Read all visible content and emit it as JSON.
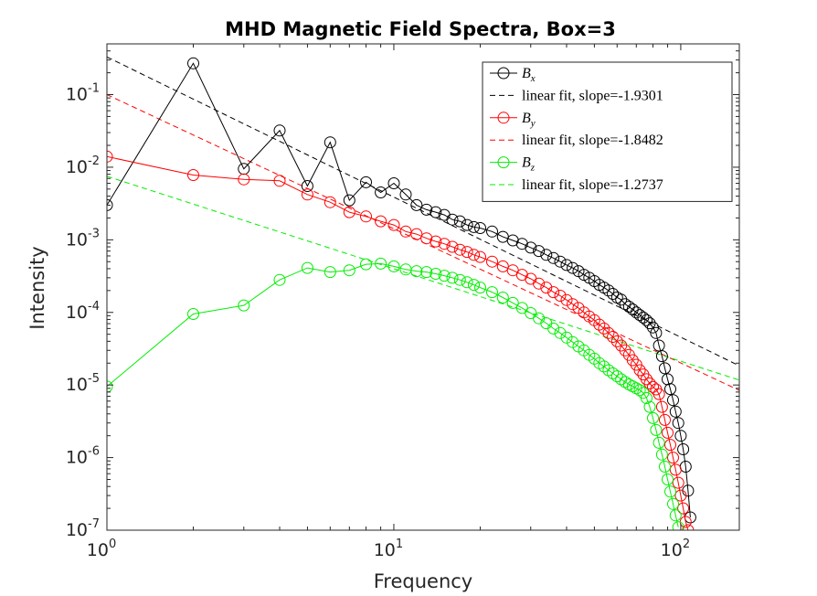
{
  "chart_data": {
    "type": "scatter",
    "title": "MHD Magnetic Field Spectra, Box=3",
    "xlabel": "Frequency",
    "ylabel": "Intensity",
    "xscale": "log",
    "yscale": "log",
    "xlim": [
      1,
      160
    ],
    "ylim": [
      1e-07,
      0.5
    ],
    "xticks": [
      {
        "base": "10",
        "exp": "0",
        "value": 1
      },
      {
        "base": "10",
        "exp": "1",
        "value": 10
      },
      {
        "base": "10",
        "exp": "2",
        "value": 100
      }
    ],
    "yticks": [
      {
        "base": "10",
        "exp": "-1",
        "value": 0.1
      },
      {
        "base": "10",
        "exp": "-2",
        "value": 0.01
      },
      {
        "base": "10",
        "exp": "-3",
        "value": 0.001
      },
      {
        "base": "10",
        "exp": "-4",
        "value": 0.0001
      },
      {
        "base": "10",
        "exp": "-5",
        "value": 1e-05
      },
      {
        "base": "10",
        "exp": "-6",
        "value": 1e-06
      },
      {
        "base": "10",
        "exp": "-7",
        "value": 1e-07
      }
    ],
    "grid": false,
    "legend_position": "top-right",
    "series": [
      {
        "sym": "B",
        "sub": "x",
        "color": "#000000",
        "points": [
          [
            1,
            0.003
          ],
          [
            2,
            0.27
          ],
          [
            3,
            0.0095
          ],
          [
            4,
            0.032
          ],
          [
            5,
            0.0055
          ],
          [
            6,
            0.022
          ],
          [
            7,
            0.0035
          ],
          [
            8,
            0.0062
          ],
          [
            9,
            0.0045
          ],
          [
            10,
            0.006
          ],
          [
            11,
            0.0042
          ],
          [
            12,
            0.003
          ],
          [
            13,
            0.0026
          ],
          [
            14,
            0.0024
          ],
          [
            15,
            0.0022
          ],
          [
            16,
            0.0019
          ],
          [
            17,
            0.0018
          ],
          [
            18,
            0.0016
          ],
          [
            19,
            0.0015
          ],
          [
            20,
            0.00145
          ],
          [
            22,
            0.0013
          ],
          [
            24,
            0.0011
          ],
          [
            26,
            0.00098
          ],
          [
            28,
            0.00088
          ],
          [
            30,
            0.00078
          ],
          [
            32,
            0.0007
          ],
          [
            34,
            0.00062
          ],
          [
            36,
            0.00056
          ],
          [
            38,
            0.0005
          ],
          [
            40,
            0.00045
          ],
          [
            42,
            0.00041
          ],
          [
            44,
            0.00037
          ],
          [
            46,
            0.00033
          ],
          [
            48,
            0.0003
          ],
          [
            50,
            0.00027
          ],
          [
            52,
            0.00024
          ],
          [
            54,
            0.00022
          ],
          [
            56,
            0.0002
          ],
          [
            58,
            0.00018
          ],
          [
            60,
            0.00016
          ],
          [
            62,
            0.00015
          ],
          [
            64,
            0.00013
          ],
          [
            66,
            0.00012
          ],
          [
            68,
            0.00011
          ],
          [
            70,
            0.0001
          ],
          [
            72,
            9.2e-05
          ],
          [
            74,
            8.5e-05
          ],
          [
            76,
            7.8e-05
          ],
          [
            78,
            7.1e-05
          ],
          [
            80,
            6.2e-05
          ],
          [
            82,
            5.2e-05
          ],
          [
            84,
            3.5e-05
          ],
          [
            86,
            2.5e-05
          ],
          [
            88,
            1.7e-05
          ],
          [
            90,
            1.2e-05
          ],
          [
            92,
            8.8e-06
          ],
          [
            94,
            6.2e-06
          ],
          [
            96,
            4.3e-06
          ],
          [
            98,
            3e-06
          ],
          [
            100,
            2e-06
          ],
          [
            102,
            1.3e-06
          ],
          [
            104,
            7.5e-07
          ],
          [
            106,
            3.5e-07
          ],
          [
            108,
            1.5e-07
          ]
        ]
      },
      {
        "sym": "B",
        "sub": "y",
        "color": "#ff0000",
        "points": [
          [
            1,
            0.014
          ],
          [
            2,
            0.0078
          ],
          [
            3,
            0.0068
          ],
          [
            4,
            0.0065
          ],
          [
            5,
            0.0042
          ],
          [
            6,
            0.0033
          ],
          [
            7,
            0.0024
          ],
          [
            8,
            0.0021
          ],
          [
            9,
            0.0018
          ],
          [
            10,
            0.0016
          ],
          [
            11,
            0.0013
          ],
          [
            12,
            0.0012
          ],
          [
            13,
            0.00105
          ],
          [
            14,
            0.00095
          ],
          [
            15,
            0.00088
          ],
          [
            16,
            0.0008
          ],
          [
            17,
            0.00073
          ],
          [
            18,
            0.00068
          ],
          [
            19,
            0.00062
          ],
          [
            20,
            0.00058
          ],
          [
            22,
            0.0005
          ],
          [
            24,
            0.00043
          ],
          [
            26,
            0.00038
          ],
          [
            28,
            0.00033
          ],
          [
            30,
            0.00029
          ],
          [
            32,
            0.00025
          ],
          [
            34,
            0.00022
          ],
          [
            36,
            0.00019
          ],
          [
            38,
            0.00017
          ],
          [
            40,
            0.000148
          ],
          [
            42,
            0.00013
          ],
          [
            44,
            0.000115
          ],
          [
            46,
            0.0001
          ],
          [
            48,
            8.8e-05
          ],
          [
            50,
            7.8e-05
          ],
          [
            52,
            6.8e-05
          ],
          [
            54,
            6e-05
          ],
          [
            56,
            5.2e-05
          ],
          [
            58,
            4.6e-05
          ],
          [
            60,
            4e-05
          ],
          [
            62,
            3.5e-05
          ],
          [
            64,
            3e-05
          ],
          [
            66,
            2.6e-05
          ],
          [
            68,
            2.2e-05
          ],
          [
            70,
            1.9e-05
          ],
          [
            72,
            1.6e-05
          ],
          [
            74,
            1.4e-05
          ],
          [
            76,
            1.2e-05
          ],
          [
            78,
            1.05e-05
          ],
          [
            80,
            9.4e-06
          ],
          [
            82,
            8.7e-06
          ],
          [
            84,
            7.5e-06
          ],
          [
            86,
            5e-06
          ],
          [
            88,
            3.3e-06
          ],
          [
            90,
            2.2e-06
          ],
          [
            92,
            1.5e-06
          ],
          [
            94,
            1e-06
          ],
          [
            96,
            6.8e-07
          ],
          [
            98,
            4.5e-07
          ],
          [
            100,
            3e-07
          ],
          [
            102,
            2e-07
          ],
          [
            104,
            1.3e-07
          ],
          [
            106,
            1e-07
          ]
        ]
      },
      {
        "sym": "B",
        "sub": "z",
        "color": "#00ee00",
        "points": [
          [
            1,
            9.5e-06
          ],
          [
            2,
            9.5e-05
          ],
          [
            3,
            0.000125
          ],
          [
            4,
            0.00028
          ],
          [
            5,
            0.00041
          ],
          [
            6,
            0.00036
          ],
          [
            7,
            0.00038
          ],
          [
            8,
            0.00046
          ],
          [
            9,
            0.00047
          ],
          [
            10,
            0.00043
          ],
          [
            11,
            0.00039
          ],
          [
            12,
            0.00037
          ],
          [
            13,
            0.00036
          ],
          [
            14,
            0.00034
          ],
          [
            15,
            0.00032
          ],
          [
            16,
            0.0003
          ],
          [
            17,
            0.00028
          ],
          [
            18,
            0.00026
          ],
          [
            19,
            0.00024
          ],
          [
            20,
            0.00022
          ],
          [
            22,
            0.00019
          ],
          [
            24,
            0.00016
          ],
          [
            26,
            0.000135
          ],
          [
            28,
            0.000115
          ],
          [
            30,
            9.8e-05
          ],
          [
            32,
            8.3e-05
          ],
          [
            34,
            7.1e-05
          ],
          [
            36,
            6e-05
          ],
          [
            38,
            5.2e-05
          ],
          [
            40,
            4.5e-05
          ],
          [
            42,
            3.9e-05
          ],
          [
            44,
            3.4e-05
          ],
          [
            46,
            3e-05
          ],
          [
            48,
            2.6e-05
          ],
          [
            50,
            2.3e-05
          ],
          [
            52,
            2e-05
          ],
          [
            54,
            1.8e-05
          ],
          [
            56,
            1.6e-05
          ],
          [
            58,
            1.45e-05
          ],
          [
            60,
            1.32e-05
          ],
          [
            62,
            1.2e-05
          ],
          [
            64,
            1.1e-05
          ],
          [
            66,
            1.02e-05
          ],
          [
            68,
            9.6e-06
          ],
          [
            70,
            9e-06
          ],
          [
            72,
            8.5e-06
          ],
          [
            74,
            7.8e-06
          ],
          [
            76,
            6.6e-06
          ],
          [
            78,
            5e-06
          ],
          [
            80,
            3.5e-06
          ],
          [
            82,
            2.4e-06
          ],
          [
            84,
            1.6e-06
          ],
          [
            86,
            1.1e-06
          ],
          [
            88,
            7.5e-07
          ],
          [
            90,
            5e-07
          ],
          [
            92,
            3.4e-07
          ],
          [
            94,
            2.3e-07
          ],
          [
            96,
            1.6e-07
          ],
          [
            98,
            1.1e-07
          ]
        ]
      }
    ],
    "fits": [
      {
        "label": "linear fit, slope=-1.9301",
        "color": "#000000",
        "slope": -1.9301,
        "intercept_at_1": 0.33
      },
      {
        "label": "linear fit, slope=-1.8482",
        "color": "#ff0000",
        "slope": -1.8482,
        "intercept_at_1": 0.1
      },
      {
        "label": "linear fit, slope=-1.2737",
        "color": "#00ee00",
        "slope": -1.2737,
        "intercept_at_1": 0.0075
      }
    ]
  }
}
